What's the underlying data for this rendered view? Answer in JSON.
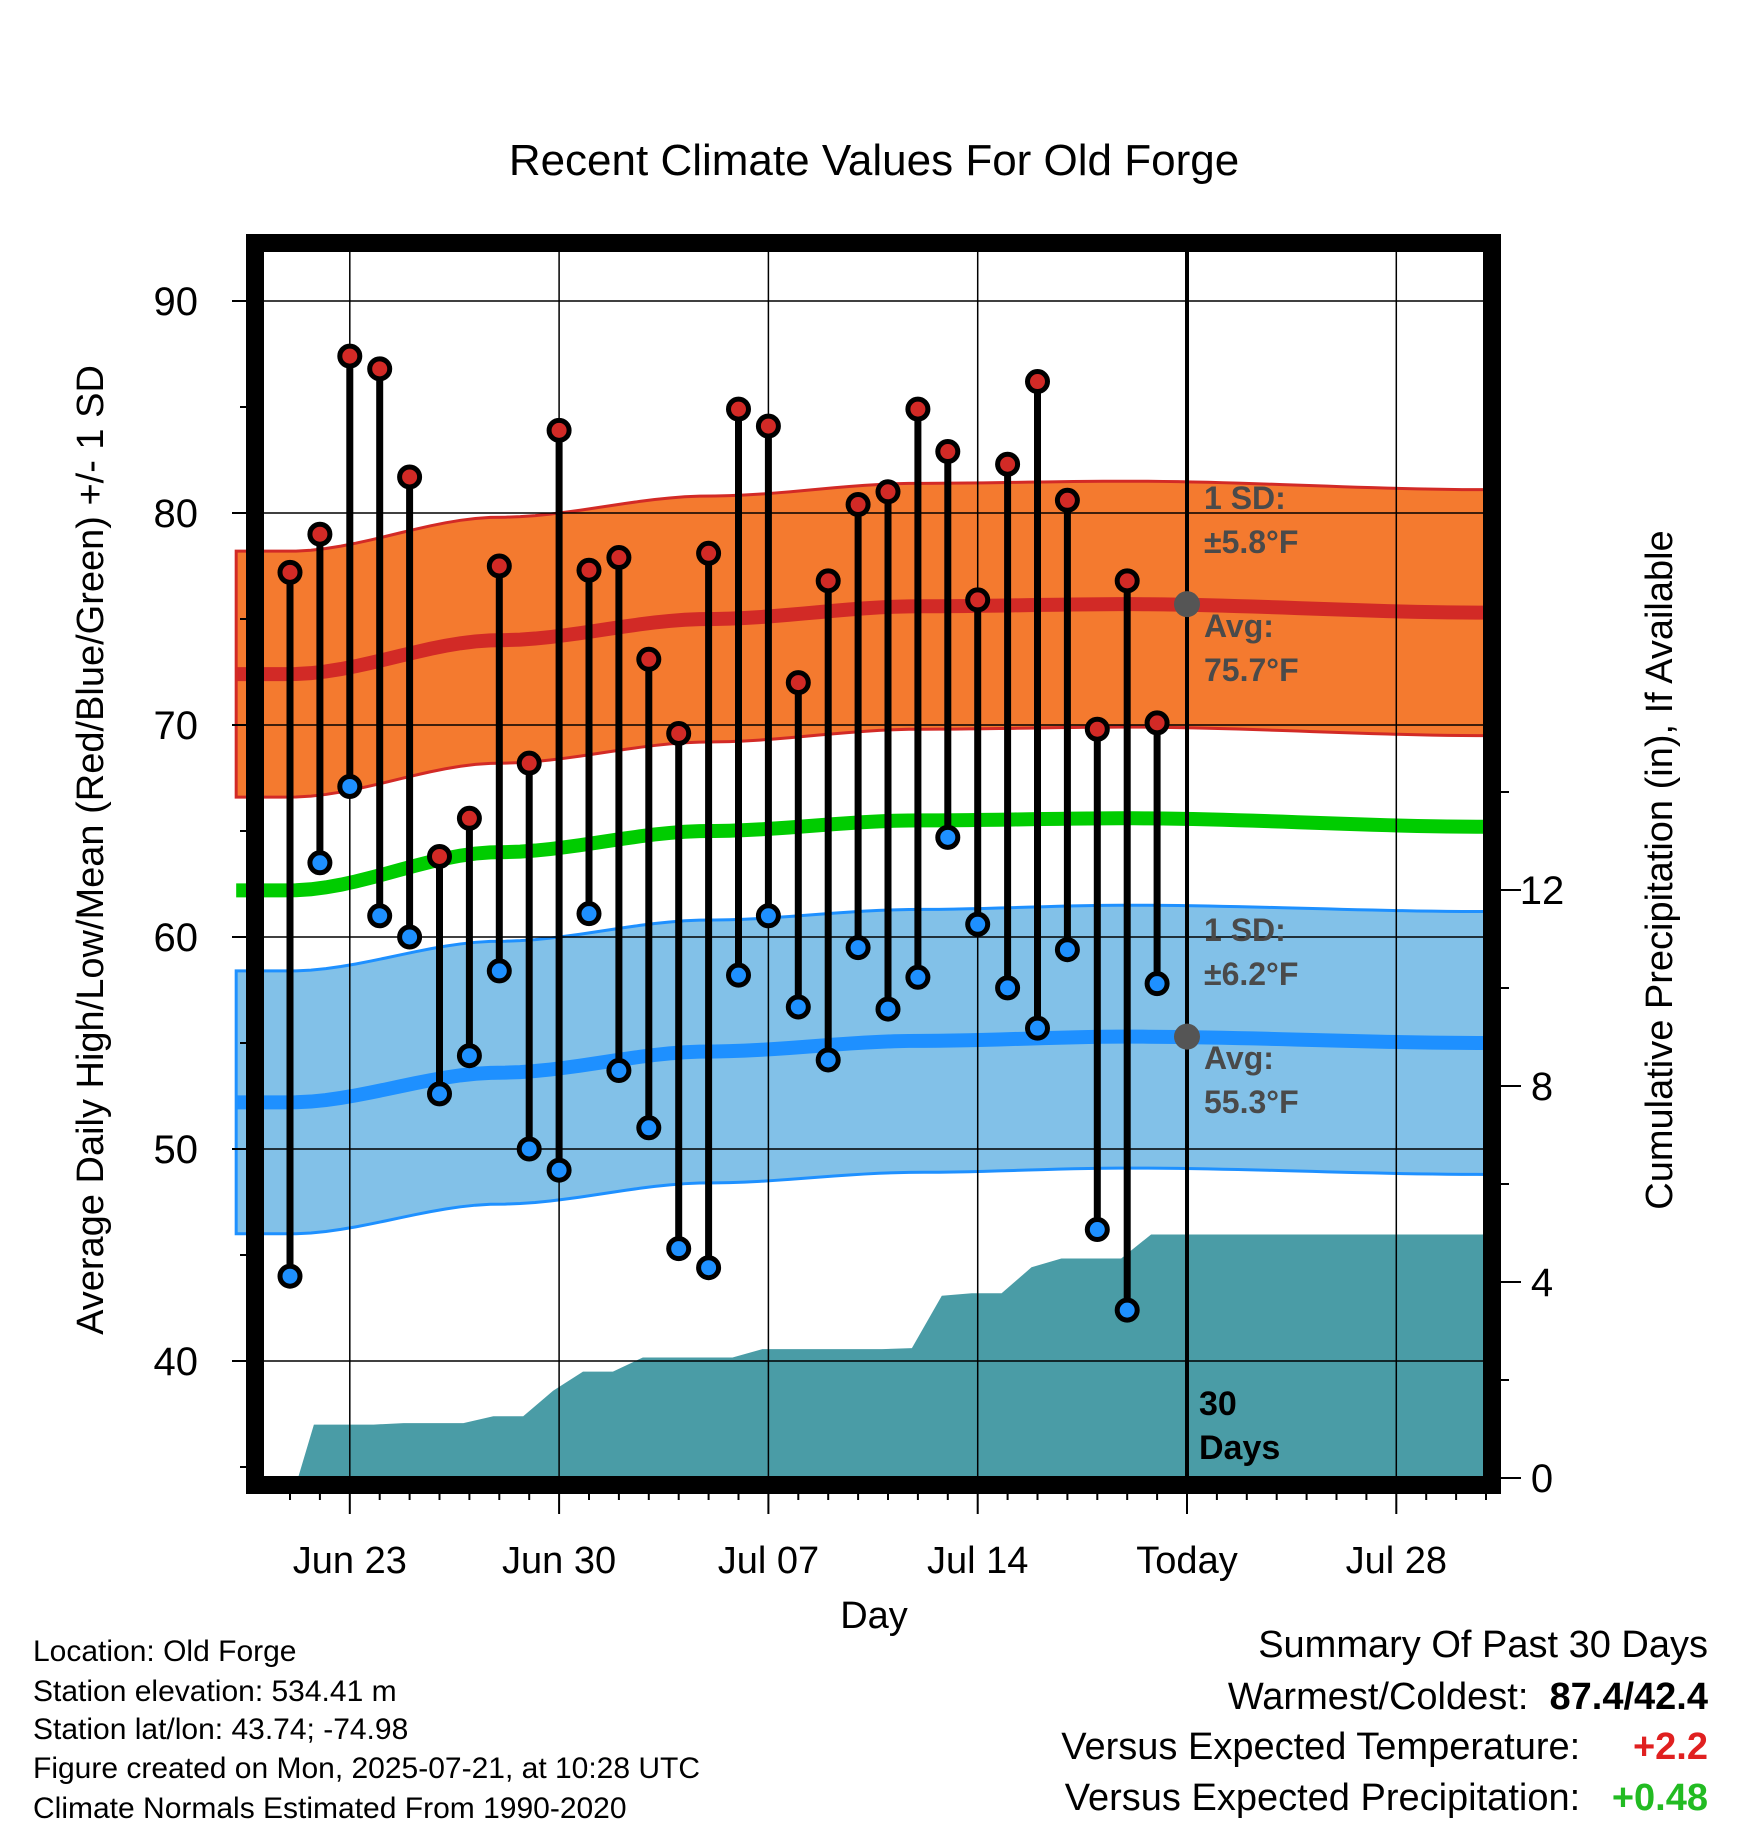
{
  "chart_data": {
    "type": "line",
    "title": "Recent Climate Values For Old Forge",
    "xlabel": "Day",
    "ylabel": "Average Daily High/Low/Mean (Red/Blue/Green) +/- 1 SD",
    "y2label": "Cumulative Precipitation (in), If Available",
    "ylim": [
      35,
      93
    ],
    "y2lim": [
      0,
      14
    ],
    "yticks": [
      40,
      50,
      60,
      70,
      80,
      90
    ],
    "y2ticks": [
      0,
      4,
      8,
      12
    ],
    "xtick_labels": [
      "Jun 23",
      "Jun 30",
      "Jul 07",
      "Jul 14",
      "Today",
      "Jul 28"
    ],
    "grid": true,
    "days": [
      "Jun 21",
      "Jun 22",
      "Jun 23",
      "Jun 24",
      "Jun 25",
      "Jun 26",
      "Jun 27",
      "Jun 28",
      "Jun 29",
      "Jun 30",
      "Jul 01",
      "Jul 02",
      "Jul 03",
      "Jul 04",
      "Jul 05",
      "Jul 06",
      "Jul 07",
      "Jul 08",
      "Jul 09",
      "Jul 10",
      "Jul 11",
      "Jul 12",
      "Jul 13",
      "Jul 14",
      "Jul 15",
      "Jul 16",
      "Jul 17",
      "Jul 18",
      "Jul 19",
      "Jul 20"
    ],
    "highs": [
      77.2,
      79.0,
      87.4,
      86.8,
      81.7,
      63.8,
      65.6,
      77.5,
      68.2,
      83.9,
      77.3,
      77.9,
      73.1,
      69.6,
      78.1,
      84.9,
      84.1,
      72.0,
      76.8,
      80.4,
      81.0,
      84.9,
      82.9,
      75.9,
      82.3,
      86.2,
      80.6,
      69.8,
      76.8,
      70.1
    ],
    "lows": [
      44.0,
      63.5,
      67.1,
      61.0,
      60.0,
      52.6,
      54.4,
      58.4,
      50.0,
      49.0,
      61.1,
      53.7,
      51.0,
      45.3,
      44.4,
      58.2,
      61.0,
      56.7,
      54.2,
      59.5,
      56.6,
      58.1,
      64.7,
      60.6,
      57.6,
      55.7,
      59.4,
      46.2,
      42.4,
      57.8
    ],
    "normal_high": [
      72.4,
      74.0,
      75.0,
      75.6,
      75.7,
      75.3
    ],
    "normal_high_sd": 5.8,
    "normal_low": [
      52.2,
      53.6,
      54.6,
      55.1,
      55.3,
      55.0
    ],
    "normal_low_sd": 6.2,
    "normal_mean": [
      62.2,
      64.0,
      65.0,
      65.5,
      65.6,
      65.2
    ],
    "normal_dates": [
      "Jun 21",
      "Jun 28",
      "Jul 05",
      "Jul 12",
      "Jul 19",
      "Jul 31"
    ],
    "cumulative_precip": [
      0.0,
      1.09,
      1.09,
      1.09,
      1.12,
      1.12,
      1.12,
      1.26,
      1.26,
      1.78,
      2.17,
      2.17,
      2.46,
      2.46,
      2.46,
      2.46,
      2.63,
      2.63,
      2.63,
      2.63,
      2.63,
      2.65,
      3.72,
      3.77,
      3.77,
      4.3,
      4.48,
      4.48,
      4.48,
      4.97
    ],
    "annotations": {
      "high_sd_label": "1 SD:",
      "high_sd_value": "±5.8°F",
      "high_avg_label": "Avg:",
      "high_avg_value": "75.7°F",
      "low_sd_label": "1 SD:",
      "low_sd_value": "±6.2°F",
      "low_avg_label": "Avg:",
      "low_avg_value": "55.3°F",
      "days_count": "30",
      "days_word": "Days"
    },
    "colors": {
      "high_band": "#f47a2f",
      "high_line": "#d22a26",
      "low_band": "#82c1e8",
      "low_line": "#1e90ff",
      "mean_line": "#00cc00",
      "precip": "#4a9ca6",
      "high_dot": "#d22a26",
      "low_dot": "#1e90ff",
      "avg_marker": "#555555"
    }
  },
  "meta": {
    "location": "Location: Old Forge",
    "elevation": "Station elevation: 534.41 m",
    "latlon": "Station lat/lon: 43.74; -74.98",
    "created": "Figure created on Mon, 2025-07-21, at 10:28 UTC",
    "normals": "Climate Normals Estimated From 1990-2020"
  },
  "summary": {
    "title": "Summary Of Past 30 Days",
    "warmest_label": "Warmest/Coldest:",
    "warmest_value": "87.4/42.4",
    "temp_label": "Versus Expected Temperature:",
    "temp_value": "+2.2",
    "temp_color": "#e02020",
    "precip_label": "Versus Expected Precipitation:",
    "precip_value": "+0.48",
    "precip_color": "#22bb22"
  }
}
